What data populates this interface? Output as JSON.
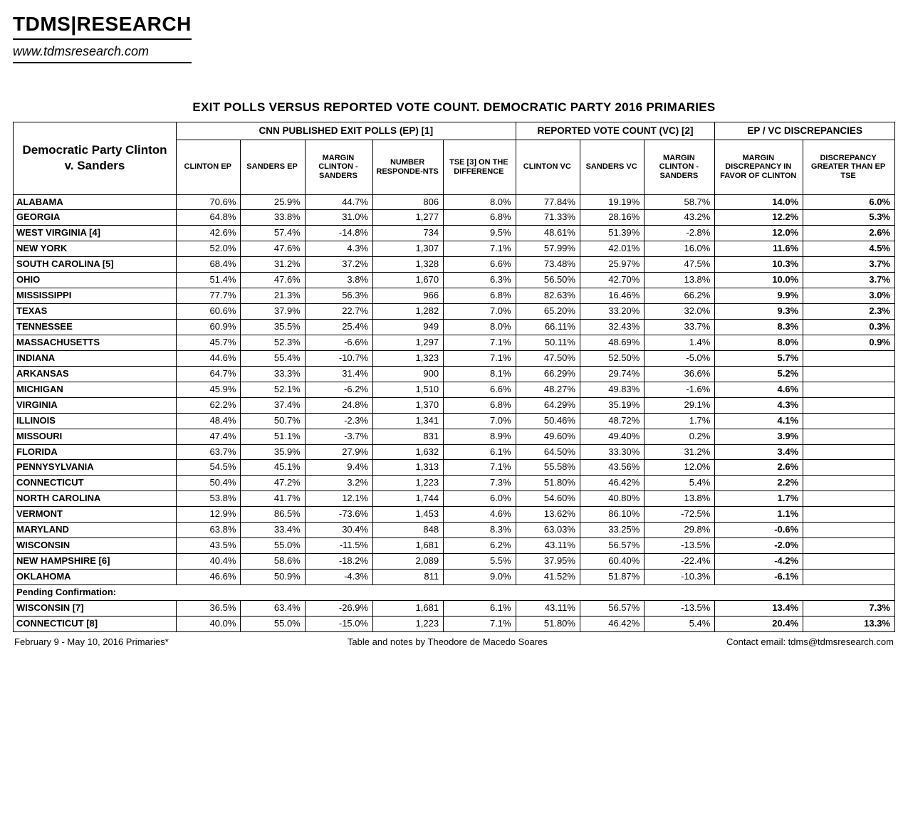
{
  "masthead": {
    "title": "TDMS|RESEARCH",
    "url": "www.tdmsresearch.com"
  },
  "title": "EXIT POLLS  VERSUS REPORTED VOTE COUNT.  DEMOCRATIC PARTY 2016 PRIMARIES",
  "corner": "Democratic Party Clinton v. Sanders",
  "group_headers": {
    "ep": "CNN PUBLISHED EXIT POLLS (EP) [1]",
    "vc": "REPORTED VOTE COUNT (VC) [2]",
    "disc": "EP / VC DISCREPANCIES"
  },
  "col_headers": {
    "c1": "CLINTON EP",
    "c2": "SANDERS EP",
    "c3": "MARGIN CLINTON - SANDERS",
    "c4": "NUMBER RESPONDE-NTS",
    "c5": "TSE [3] ON THE DIFFERENCE",
    "c6": "CLINTON VC",
    "c7": "SANDERS VC",
    "c8": "MARGIN CLINTON - SANDERS",
    "c9": "MARGIN DISCREPANCY IN FAVOR OF CLINTON",
    "c10": "DISCREPANCY GREATER THAN EP TSE"
  },
  "col_widths_pct": [
    18.5,
    7.3,
    7.3,
    7.7,
    8.0,
    8.2,
    7.3,
    7.3,
    8.0,
    10.0,
    10.4
  ],
  "rows": [
    {
      "state": "ALABAMA",
      "c1": "70.6%",
      "c2": "25.9%",
      "c3": "44.7%",
      "c4": "806",
      "c5": "8.0%",
      "c6": "77.84%",
      "c7": "19.19%",
      "c8": "58.7%",
      "c9": "14.0%",
      "c10": "6.0%"
    },
    {
      "state": "GEORGIA",
      "c1": "64.8%",
      "c2": "33.8%",
      "c3": "31.0%",
      "c4": "1,277",
      "c5": "6.8%",
      "c6": "71.33%",
      "c7": "28.16%",
      "c8": "43.2%",
      "c9": "12.2%",
      "c10": "5.3%"
    },
    {
      "state": "WEST VIRGINIA [4]",
      "c1": "42.6%",
      "c2": "57.4%",
      "c3": "-14.8%",
      "c4": "734",
      "c5": "9.5%",
      "c6": "48.61%",
      "c7": "51.39%",
      "c8": "-2.8%",
      "c9": "12.0%",
      "c10": "2.6%"
    },
    {
      "state": "NEW YORK",
      "c1": "52.0%",
      "c2": "47.6%",
      "c3": "4.3%",
      "c4": "1,307",
      "c5": "7.1%",
      "c6": "57.99%",
      "c7": "42.01%",
      "c8": "16.0%",
      "c9": "11.6%",
      "c10": "4.5%"
    },
    {
      "state": "SOUTH CAROLINA [5]",
      "c1": "68.4%",
      "c2": "31.2%",
      "c3": "37.2%",
      "c4": "1,328",
      "c5": "6.6%",
      "c6": "73.48%",
      "c7": "25.97%",
      "c8": "47.5%",
      "c9": "10.3%",
      "c10": "3.7%"
    },
    {
      "state": "OHIO",
      "c1": "51.4%",
      "c2": "47.6%",
      "c3": "3.8%",
      "c4": "1,670",
      "c5": "6.3%",
      "c6": "56.50%",
      "c7": "42.70%",
      "c8": "13.8%",
      "c9": "10.0%",
      "c10": "3.7%"
    },
    {
      "state": "MISSISSIPPI",
      "c1": "77.7%",
      "c2": "21.3%",
      "c3": "56.3%",
      "c4": "966",
      "c5": "6.8%",
      "c6": "82.63%",
      "c7": "16.46%",
      "c8": "66.2%",
      "c9": "9.9%",
      "c10": "3.0%"
    },
    {
      "state": "TEXAS",
      "c1": "60.6%",
      "c2": "37.9%",
      "c3": "22.7%",
      "c4": "1,282",
      "c5": "7.0%",
      "c6": "65.20%",
      "c7": "33.20%",
      "c8": "32.0%",
      "c9": "9.3%",
      "c10": "2.3%"
    },
    {
      "state": "TENNESSEE",
      "c1": "60.9%",
      "c2": "35.5%",
      "c3": "25.4%",
      "c4": "949",
      "c5": "8.0%",
      "c6": "66.11%",
      "c7": "32.43%",
      "c8": "33.7%",
      "c9": "8.3%",
      "c10": "0.3%"
    },
    {
      "state": "MASSACHUSETTS",
      "c1": "45.7%",
      "c2": "52.3%",
      "c3": "-6.6%",
      "c4": "1,297",
      "c5": "7.1%",
      "c6": "50.11%",
      "c7": "48.69%",
      "c8": "1.4%",
      "c9": "8.0%",
      "c10": "0.9%"
    },
    {
      "state": "INDIANA",
      "c1": "44.6%",
      "c2": "55.4%",
      "c3": "-10.7%",
      "c4": "1,323",
      "c5": "7.1%",
      "c6": "47.50%",
      "c7": "52.50%",
      "c8": "-5.0%",
      "c9": "5.7%",
      "c10": ""
    },
    {
      "state": "ARKANSAS",
      "c1": "64.7%",
      "c2": "33.3%",
      "c3": "31.4%",
      "c4": "900",
      "c5": "8.1%",
      "c6": "66.29%",
      "c7": "29.74%",
      "c8": "36.6%",
      "c9": "5.2%",
      "c10": ""
    },
    {
      "state": "MICHIGAN",
      "c1": "45.9%",
      "c2": "52.1%",
      "c3": "-6.2%",
      "c4": "1,510",
      "c5": "6.6%",
      "c6": "48.27%",
      "c7": "49.83%",
      "c8": "-1.6%",
      "c9": "4.6%",
      "c10": ""
    },
    {
      "state": "VIRGINIA",
      "c1": "62.2%",
      "c2": "37.4%",
      "c3": "24.8%",
      "c4": "1,370",
      "c5": "6.8%",
      "c6": "64.29%",
      "c7": "35.19%",
      "c8": "29.1%",
      "c9": "4.3%",
      "c10": ""
    },
    {
      "state": "ILLINOIS",
      "c1": "48.4%",
      "c2": "50.7%",
      "c3": "-2.3%",
      "c4": "1,341",
      "c5": "7.0%",
      "c6": "50.46%",
      "c7": "48.72%",
      "c8": "1.7%",
      "c9": "4.1%",
      "c10": ""
    },
    {
      "state": "MISSOURI",
      "c1": "47.4%",
      "c2": "51.1%",
      "c3": "-3.7%",
      "c4": "831",
      "c5": "8.9%",
      "c6": "49.60%",
      "c7": "49.40%",
      "c8": "0.2%",
      "c9": "3.9%",
      "c10": ""
    },
    {
      "state": "FLORIDA",
      "c1": "63.7%",
      "c2": "35.9%",
      "c3": "27.9%",
      "c4": "1,632",
      "c5": "6.1%",
      "c6": "64.50%",
      "c7": "33.30%",
      "c8": "31.2%",
      "c9": "3.4%",
      "c10": ""
    },
    {
      "state": "PENNYSYLVANIA",
      "c1": "54.5%",
      "c2": "45.1%",
      "c3": "9.4%",
      "c4": "1,313",
      "c5": "7.1%",
      "c6": "55.58%",
      "c7": "43.56%",
      "c8": "12.0%",
      "c9": "2.6%",
      "c10": ""
    },
    {
      "state": "CONNECTICUT",
      "c1": "50.4%",
      "c2": "47.2%",
      "c3": "3.2%",
      "c4": "1,223",
      "c5": "7.3%",
      "c6": "51.80%",
      "c7": "46.42%",
      "c8": "5.4%",
      "c9": "2.2%",
      "c10": ""
    },
    {
      "state": "NORTH CAROLINA",
      "c1": "53.8%",
      "c2": "41.7%",
      "c3": "12.1%",
      "c4": "1,744",
      "c5": "6.0%",
      "c6": "54.60%",
      "c7": "40.80%",
      "c8": "13.8%",
      "c9": "1.7%",
      "c10": ""
    },
    {
      "state": "VERMONT",
      "c1": "12.9%",
      "c2": "86.5%",
      "c3": "-73.6%",
      "c4": "1,453",
      "c5": "4.6%",
      "c6": "13.62%",
      "c7": "86.10%",
      "c8": "-72.5%",
      "c9": "1.1%",
      "c10": ""
    },
    {
      "state": "MARYLAND",
      "c1": "63.8%",
      "c2": "33.4%",
      "c3": "30.4%",
      "c4": "848",
      "c5": "8.3%",
      "c6": "63.03%",
      "c7": "33.25%",
      "c8": "29.8%",
      "c9": "-0.6%",
      "c10": ""
    },
    {
      "state": "WISCONSIN",
      "c1": "43.5%",
      "c2": "55.0%",
      "c3": "-11.5%",
      "c4": "1,681",
      "c5": "6.2%",
      "c6": "43.11%",
      "c7": "56.57%",
      "c8": "-13.5%",
      "c9": "-2.0%",
      "c10": ""
    },
    {
      "state": "NEW HAMPSHIRE [6]",
      "c1": "40.4%",
      "c2": "58.6%",
      "c3": "-18.2%",
      "c4": "2,089",
      "c5": "5.5%",
      "c6": "37.95%",
      "c7": "60.40%",
      "c8": "-22.4%",
      "c9": "-4.2%",
      "c10": ""
    },
    {
      "state": "OKLAHOMA",
      "c1": "46.6%",
      "c2": "50.9%",
      "c3": "-4.3%",
      "c4": "811",
      "c5": "9.0%",
      "c6": "41.52%",
      "c7": "51.87%",
      "c8": "-10.3%",
      "c9": "-6.1%",
      "c10": ""
    }
  ],
  "pending_label": "Pending Confirmation:",
  "pending_rows": [
    {
      "state": "WISCONSIN [7]",
      "c1": "36.5%",
      "c2": "63.4%",
      "c3": "-26.9%",
      "c4": "1,681",
      "c5": "6.1%",
      "c6": "43.11%",
      "c7": "56.57%",
      "c8": "-13.5%",
      "c9": "13.4%",
      "c10": "7.3%"
    },
    {
      "state": "CONNECTICUT [8]",
      "c1": "40.0%",
      "c2": "55.0%",
      "c3": "-15.0%",
      "c4": "1,223",
      "c5": "7.1%",
      "c6": "51.80%",
      "c7": "46.42%",
      "c8": "5.4%",
      "c9": "20.4%",
      "c10": "13.3%"
    }
  ],
  "footer": {
    "left": "February 9 - May 10, 2016 Primaries*",
    "center": "Table and notes by Theodore de Macedo Soares",
    "right": "Contact email: tdms@tdmsresearch.com"
  }
}
